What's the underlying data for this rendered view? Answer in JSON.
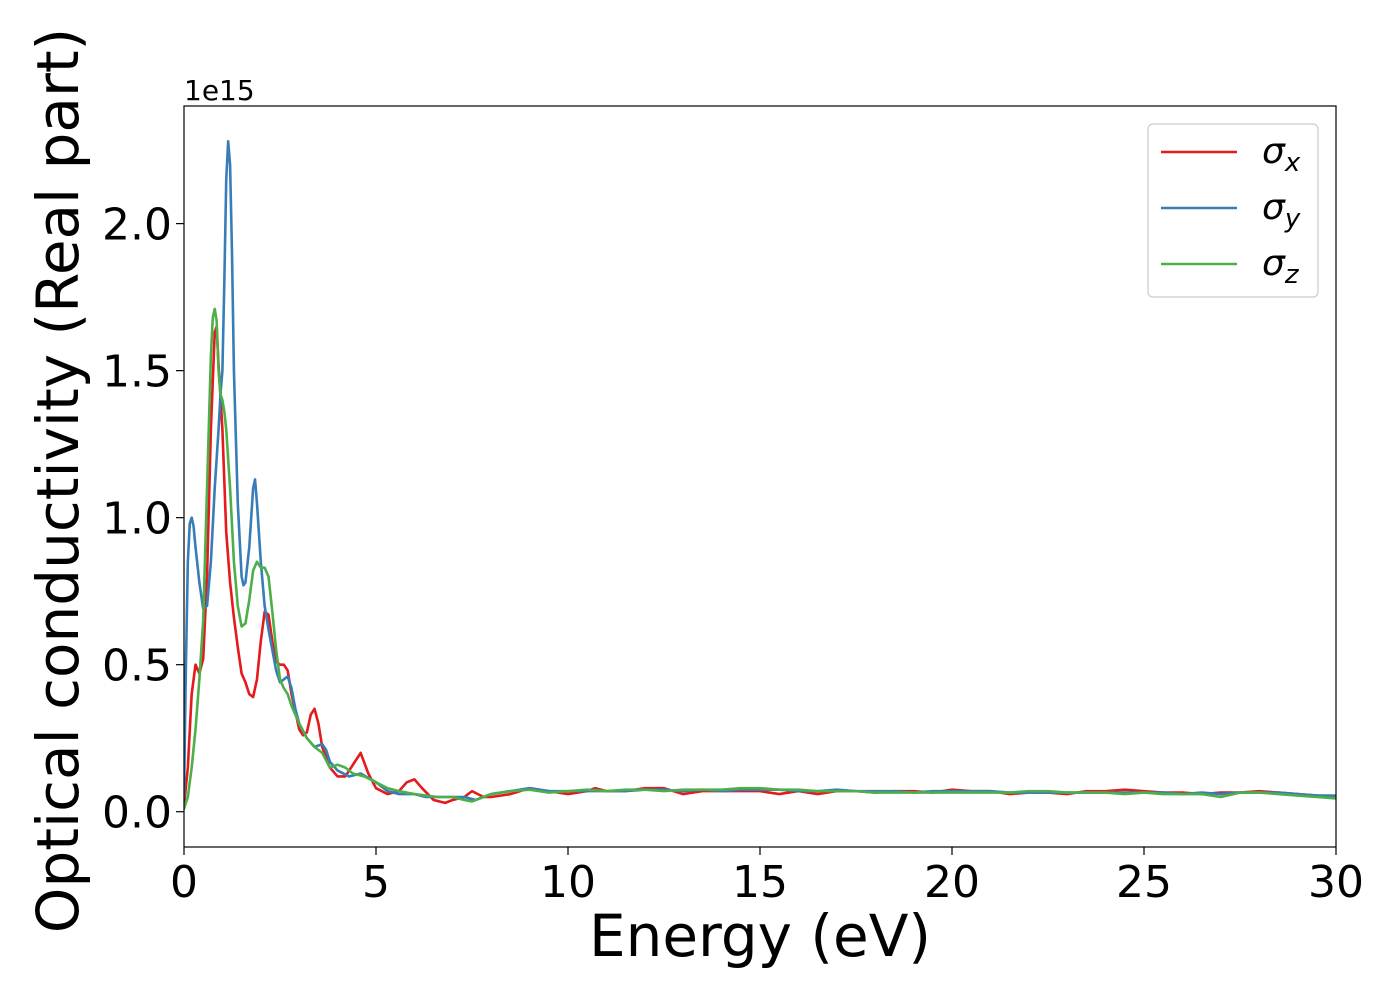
{
  "chart_data": {
    "type": "line",
    "title": "",
    "xlabel": "Energy (eV)",
    "ylabel": "Optical conductivity (Real part)",
    "y_offset_label": "1e15",
    "xlim": [
      0,
      30
    ],
    "ylim": [
      -0.12,
      2.4
    ],
    "x_ticks": [
      0,
      5,
      10,
      15,
      20,
      25,
      30
    ],
    "x_tick_labels": [
      "0",
      "5",
      "10",
      "15",
      "20",
      "25",
      "30"
    ],
    "y_ticks": [
      0.0,
      0.5,
      1.0,
      1.5,
      2.0
    ],
    "y_tick_labels": [
      "0.0",
      "0.5",
      "1.0",
      "1.5",
      "2.0"
    ],
    "grid": false,
    "legend_position": "top-right",
    "series": [
      {
        "name": "σx",
        "legend_base": "σ",
        "legend_sub": "x",
        "color": "#e41a1c",
        "points": [
          [
            0.0,
            0.02
          ],
          [
            0.1,
            0.15
          ],
          [
            0.2,
            0.4
          ],
          [
            0.3,
            0.5
          ],
          [
            0.4,
            0.47
          ],
          [
            0.5,
            0.52
          ],
          [
            0.6,
            0.8
          ],
          [
            0.7,
            1.3
          ],
          [
            0.8,
            1.63
          ],
          [
            0.85,
            1.65
          ],
          [
            0.9,
            1.52
          ],
          [
            1.0,
            1.3
          ],
          [
            1.1,
            0.95
          ],
          [
            1.2,
            0.78
          ],
          [
            1.3,
            0.66
          ],
          [
            1.4,
            0.56
          ],
          [
            1.5,
            0.47
          ],
          [
            1.6,
            0.44
          ],
          [
            1.7,
            0.4
          ],
          [
            1.8,
            0.39
          ],
          [
            1.9,
            0.45
          ],
          [
            2.0,
            0.58
          ],
          [
            2.1,
            0.68
          ],
          [
            2.2,
            0.67
          ],
          [
            2.3,
            0.58
          ],
          [
            2.4,
            0.51
          ],
          [
            2.5,
            0.5
          ],
          [
            2.6,
            0.5
          ],
          [
            2.7,
            0.48
          ],
          [
            2.8,
            0.4
          ],
          [
            2.9,
            0.34
          ],
          [
            3.0,
            0.28
          ],
          [
            3.1,
            0.26
          ],
          [
            3.2,
            0.27
          ],
          [
            3.3,
            0.33
          ],
          [
            3.4,
            0.35
          ],
          [
            3.5,
            0.3
          ],
          [
            3.6,
            0.22
          ],
          [
            3.8,
            0.15
          ],
          [
            4.0,
            0.12
          ],
          [
            4.2,
            0.12
          ],
          [
            4.4,
            0.16
          ],
          [
            4.6,
            0.2
          ],
          [
            4.8,
            0.13
          ],
          [
            5.0,
            0.08
          ],
          [
            5.3,
            0.06
          ],
          [
            5.6,
            0.07
          ],
          [
            5.8,
            0.1
          ],
          [
            6.0,
            0.11
          ],
          [
            6.2,
            0.08
          ],
          [
            6.5,
            0.04
          ],
          [
            6.8,
            0.03
          ],
          [
            7.0,
            0.04
          ],
          [
            7.3,
            0.05
          ],
          [
            7.5,
            0.07
          ],
          [
            7.8,
            0.05
          ],
          [
            8.0,
            0.05
          ],
          [
            8.5,
            0.06
          ],
          [
            9.0,
            0.08
          ],
          [
            9.5,
            0.07
          ],
          [
            10.0,
            0.06
          ],
          [
            10.5,
            0.07
          ],
          [
            10.7,
            0.08
          ],
          [
            11.0,
            0.07
          ],
          [
            11.5,
            0.07
          ],
          [
            12.0,
            0.08
          ],
          [
            12.5,
            0.08
          ],
          [
            13.0,
            0.06
          ],
          [
            13.5,
            0.07
          ],
          [
            14.0,
            0.07
          ],
          [
            14.5,
            0.07
          ],
          [
            15.0,
            0.07
          ],
          [
            15.5,
            0.06
          ],
          [
            16.0,
            0.07
          ],
          [
            16.5,
            0.06
          ],
          [
            17.0,
            0.07
          ],
          [
            17.5,
            0.07
          ],
          [
            18.0,
            0.065
          ],
          [
            18.5,
            0.07
          ],
          [
            19.0,
            0.07
          ],
          [
            19.5,
            0.065
          ],
          [
            20.0,
            0.075
          ],
          [
            20.5,
            0.07
          ],
          [
            21.0,
            0.07
          ],
          [
            21.5,
            0.06
          ],
          [
            22.0,
            0.065
          ],
          [
            22.5,
            0.065
          ],
          [
            23.0,
            0.06
          ],
          [
            23.5,
            0.07
          ],
          [
            24.0,
            0.07
          ],
          [
            24.5,
            0.075
          ],
          [
            25.0,
            0.07
          ],
          [
            25.5,
            0.065
          ],
          [
            26.0,
            0.065
          ],
          [
            26.5,
            0.06
          ],
          [
            27.0,
            0.065
          ],
          [
            27.5,
            0.065
          ],
          [
            28.0,
            0.07
          ],
          [
            28.5,
            0.065
          ],
          [
            29.0,
            0.06
          ],
          [
            29.5,
            0.055
          ],
          [
            30.0,
            0.05
          ]
        ]
      },
      {
        "name": "σy",
        "legend_base": "σ",
        "legend_sub": "y",
        "color": "#377eb8",
        "points": [
          [
            0.0,
            0.05
          ],
          [
            0.05,
            0.5
          ],
          [
            0.1,
            0.85
          ],
          [
            0.15,
            0.98
          ],
          [
            0.2,
            1.0
          ],
          [
            0.25,
            0.97
          ],
          [
            0.3,
            0.9
          ],
          [
            0.4,
            0.78
          ],
          [
            0.5,
            0.69
          ],
          [
            0.6,
            0.7
          ],
          [
            0.7,
            0.85
          ],
          [
            0.8,
            1.1
          ],
          [
            0.9,
            1.3
          ],
          [
            0.95,
            1.42
          ],
          [
            1.0,
            1.5
          ],
          [
            1.05,
            1.8
          ],
          [
            1.1,
            2.15
          ],
          [
            1.15,
            2.28
          ],
          [
            1.2,
            2.2
          ],
          [
            1.25,
            1.9
          ],
          [
            1.3,
            1.5
          ],
          [
            1.4,
            1.05
          ],
          [
            1.5,
            0.8
          ],
          [
            1.55,
            0.77
          ],
          [
            1.6,
            0.78
          ],
          [
            1.7,
            0.9
          ],
          [
            1.8,
            1.1
          ],
          [
            1.85,
            1.13
          ],
          [
            1.9,
            1.05
          ],
          [
            2.0,
            0.85
          ],
          [
            2.1,
            0.7
          ],
          [
            2.2,
            0.62
          ],
          [
            2.3,
            0.55
          ],
          [
            2.4,
            0.48
          ],
          [
            2.5,
            0.44
          ],
          [
            2.6,
            0.45
          ],
          [
            2.7,
            0.46
          ],
          [
            2.8,
            0.42
          ],
          [
            2.9,
            0.35
          ],
          [
            3.0,
            0.3
          ],
          [
            3.2,
            0.25
          ],
          [
            3.4,
            0.22
          ],
          [
            3.6,
            0.23
          ],
          [
            3.7,
            0.21
          ],
          [
            3.8,
            0.17
          ],
          [
            4.0,
            0.14
          ],
          [
            4.3,
            0.12
          ],
          [
            4.6,
            0.13
          ],
          [
            5.0,
            0.1
          ],
          [
            5.3,
            0.07
          ],
          [
            5.6,
            0.06
          ],
          [
            6.0,
            0.06
          ],
          [
            6.3,
            0.05
          ],
          [
            6.6,
            0.05
          ],
          [
            7.0,
            0.05
          ],
          [
            7.3,
            0.05
          ],
          [
            7.6,
            0.04
          ],
          [
            8.0,
            0.06
          ],
          [
            8.5,
            0.07
          ],
          [
            9.0,
            0.08
          ],
          [
            9.5,
            0.07
          ],
          [
            10.0,
            0.07
          ],
          [
            10.5,
            0.07
          ],
          [
            11.0,
            0.07
          ],
          [
            11.5,
            0.07
          ],
          [
            12.0,
            0.075
          ],
          [
            12.5,
            0.075
          ],
          [
            13.0,
            0.07
          ],
          [
            13.5,
            0.075
          ],
          [
            14.0,
            0.07
          ],
          [
            14.5,
            0.075
          ],
          [
            15.0,
            0.075
          ],
          [
            15.5,
            0.075
          ],
          [
            16.0,
            0.07
          ],
          [
            16.5,
            0.07
          ],
          [
            17.0,
            0.075
          ],
          [
            17.5,
            0.07
          ],
          [
            18.0,
            0.07
          ],
          [
            18.5,
            0.07
          ],
          [
            19.0,
            0.065
          ],
          [
            19.5,
            0.07
          ],
          [
            20.0,
            0.07
          ],
          [
            20.5,
            0.07
          ],
          [
            21.0,
            0.07
          ],
          [
            21.5,
            0.065
          ],
          [
            22.0,
            0.065
          ],
          [
            22.5,
            0.065
          ],
          [
            23.0,
            0.065
          ],
          [
            23.5,
            0.065
          ],
          [
            24.0,
            0.065
          ],
          [
            24.5,
            0.065
          ],
          [
            25.0,
            0.065
          ],
          [
            25.5,
            0.065
          ],
          [
            26.0,
            0.06
          ],
          [
            26.5,
            0.065
          ],
          [
            27.0,
            0.06
          ],
          [
            27.5,
            0.065
          ],
          [
            28.0,
            0.065
          ],
          [
            28.5,
            0.065
          ],
          [
            29.0,
            0.06
          ],
          [
            29.5,
            0.055
          ],
          [
            30.0,
            0.055
          ]
        ]
      },
      {
        "name": "σz",
        "legend_base": "σ",
        "legend_sub": "z",
        "color": "#4daf4a",
        "points": [
          [
            0.0,
            0.01
          ],
          [
            0.1,
            0.05
          ],
          [
            0.2,
            0.15
          ],
          [
            0.3,
            0.28
          ],
          [
            0.4,
            0.45
          ],
          [
            0.5,
            0.65
          ],
          [
            0.6,
            1.1
          ],
          [
            0.7,
            1.55
          ],
          [
            0.75,
            1.68
          ],
          [
            0.8,
            1.71
          ],
          [
            0.85,
            1.67
          ],
          [
            0.9,
            1.5
          ],
          [
            0.95,
            1.42
          ],
          [
            1.0,
            1.4
          ],
          [
            1.05,
            1.36
          ],
          [
            1.1,
            1.3
          ],
          [
            1.2,
            1.1
          ],
          [
            1.3,
            0.85
          ],
          [
            1.4,
            0.7
          ],
          [
            1.5,
            0.63
          ],
          [
            1.6,
            0.64
          ],
          [
            1.7,
            0.72
          ],
          [
            1.8,
            0.82
          ],
          [
            1.9,
            0.85
          ],
          [
            2.0,
            0.83
          ],
          [
            2.1,
            0.83
          ],
          [
            2.2,
            0.8
          ],
          [
            2.3,
            0.68
          ],
          [
            2.4,
            0.55
          ],
          [
            2.5,
            0.45
          ],
          [
            2.6,
            0.42
          ],
          [
            2.7,
            0.4
          ],
          [
            2.8,
            0.36
          ],
          [
            3.0,
            0.3
          ],
          [
            3.2,
            0.25
          ],
          [
            3.4,
            0.22
          ],
          [
            3.6,
            0.2
          ],
          [
            3.8,
            0.15
          ],
          [
            4.0,
            0.16
          ],
          [
            4.2,
            0.15
          ],
          [
            4.4,
            0.13
          ],
          [
            4.7,
            0.12
          ],
          [
            5.0,
            0.1
          ],
          [
            5.3,
            0.08
          ],
          [
            5.6,
            0.07
          ],
          [
            6.0,
            0.06
          ],
          [
            6.3,
            0.055
          ],
          [
            6.6,
            0.05
          ],
          [
            7.0,
            0.05
          ],
          [
            7.3,
            0.04
          ],
          [
            7.5,
            0.035
          ],
          [
            7.8,
            0.05
          ],
          [
            8.0,
            0.06
          ],
          [
            8.5,
            0.07
          ],
          [
            9.0,
            0.075
          ],
          [
            9.5,
            0.065
          ],
          [
            10.0,
            0.07
          ],
          [
            10.5,
            0.075
          ],
          [
            11.0,
            0.07
          ],
          [
            11.5,
            0.075
          ],
          [
            12.0,
            0.075
          ],
          [
            12.5,
            0.07
          ],
          [
            13.0,
            0.075
          ],
          [
            13.5,
            0.075
          ],
          [
            14.0,
            0.075
          ],
          [
            14.5,
            0.08
          ],
          [
            15.0,
            0.08
          ],
          [
            15.5,
            0.075
          ],
          [
            16.0,
            0.075
          ],
          [
            16.5,
            0.07
          ],
          [
            17.0,
            0.07
          ],
          [
            17.5,
            0.07
          ],
          [
            18.0,
            0.065
          ],
          [
            18.5,
            0.065
          ],
          [
            19.0,
            0.065
          ],
          [
            19.5,
            0.065
          ],
          [
            20.0,
            0.065
          ],
          [
            20.5,
            0.065
          ],
          [
            21.0,
            0.065
          ],
          [
            21.5,
            0.065
          ],
          [
            22.0,
            0.07
          ],
          [
            22.5,
            0.07
          ],
          [
            23.0,
            0.065
          ],
          [
            23.5,
            0.065
          ],
          [
            24.0,
            0.065
          ],
          [
            24.5,
            0.06
          ],
          [
            25.0,
            0.065
          ],
          [
            25.5,
            0.06
          ],
          [
            26.0,
            0.06
          ],
          [
            26.5,
            0.06
          ],
          [
            27.0,
            0.05
          ],
          [
            27.5,
            0.065
          ],
          [
            28.0,
            0.065
          ],
          [
            28.5,
            0.06
          ],
          [
            29.0,
            0.055
          ],
          [
            29.5,
            0.05
          ],
          [
            30.0,
            0.045
          ]
        ]
      }
    ]
  }
}
